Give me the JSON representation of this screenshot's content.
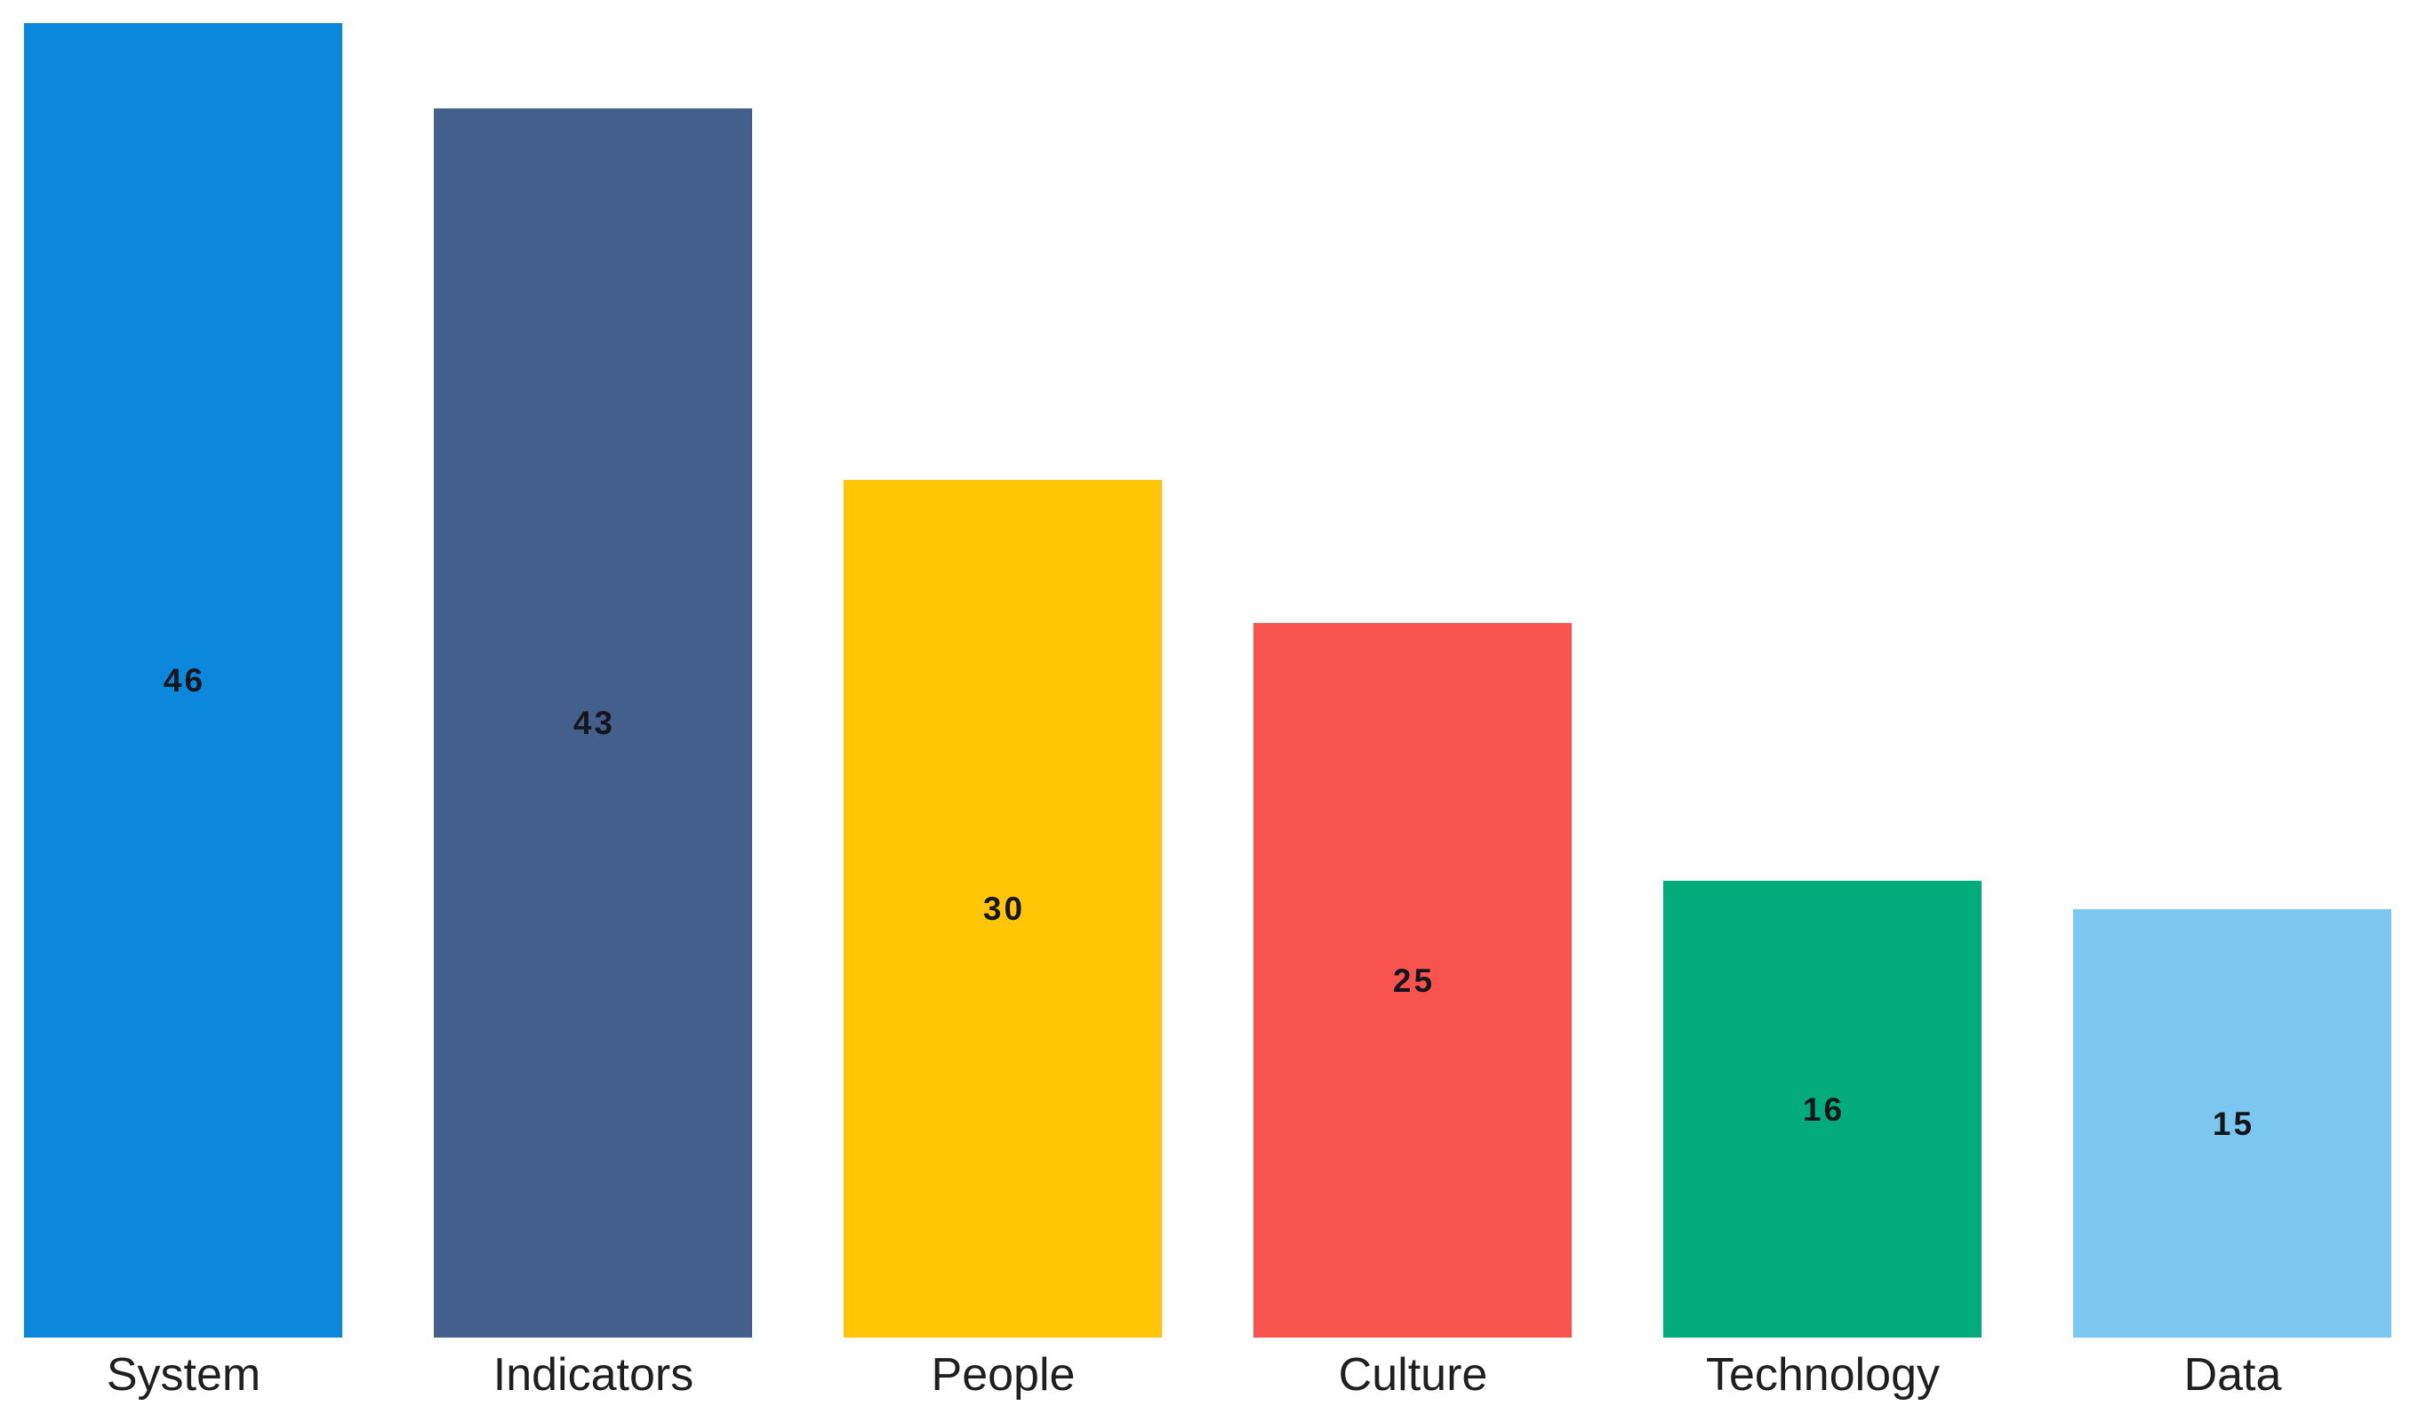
{
  "chart_data": {
    "type": "bar",
    "title": "",
    "xlabel": "",
    "ylabel": "",
    "categories": [
      "System",
      "Indicators",
      "People",
      "Culture",
      "Technology",
      "Data"
    ],
    "values": [
      46,
      43,
      30,
      25,
      16,
      15
    ],
    "bar_colors": [
      "#0b87db",
      "#43608d",
      "#ffc607",
      "#f95350",
      "#02ab7c",
      "#7bc7f0"
    ],
    "value_label_color": "#15161c",
    "axis_label_color": "#1f1f1f",
    "background": "#ffffff",
    "ylim": [
      0,
      46.8
    ],
    "grid": false,
    "legend": false,
    "value_label_position": "inside-center",
    "axis_lines": false
  }
}
